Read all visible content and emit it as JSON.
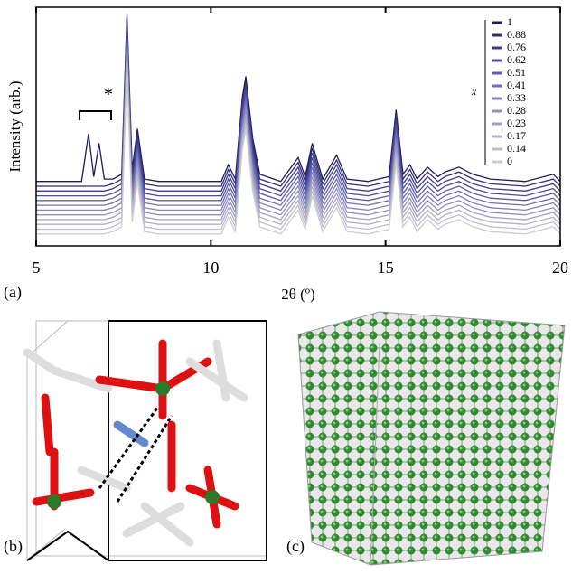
{
  "chart_data": {
    "type": "line",
    "xlabel": "2θ (º)",
    "ylabel": "Intensity (arb.)",
    "xlim": [
      5,
      20
    ],
    "xticks": [
      5,
      10,
      15,
      20
    ],
    "ylim": [
      0,
      100
    ],
    "legend_title": "x",
    "annotation": "*",
    "x": [
      5,
      6,
      6.3,
      6.5,
      6.65,
      6.8,
      6.95,
      7.2,
      7.45,
      7.6,
      7.75,
      7.9,
      8.1,
      8.5,
      9.5,
      10.3,
      10.5,
      10.7,
      10.9,
      11.0,
      11.2,
      11.4,
      12.0,
      12.5,
      12.7,
      12.9,
      13.2,
      13.6,
      13.9,
      14.5,
      15.1,
      15.3,
      15.5,
      15.7,
      15.9,
      16.2,
      16.5,
      16.7,
      17.1,
      17.5,
      18.0,
      19.0,
      19.8,
      20
    ],
    "series": [
      {
        "name": "1",
        "color": "#1c1c5a",
        "values": [
          27,
          27,
          27,
          47,
          29,
          43,
          28,
          28,
          30,
          97,
          32,
          49,
          28,
          27,
          27,
          27,
          34,
          28,
          62,
          71,
          45,
          30,
          27,
          37,
          29,
          43,
          28,
          38,
          28,
          27,
          29,
          57,
          30,
          34,
          28,
          33,
          29,
          31,
          33,
          30,
          28,
          27,
          30,
          27
        ]
      },
      {
        "name": "0.88",
        "color": "#2e2e78",
        "values": [
          25,
          25,
          25,
          25,
          25,
          25,
          25,
          26,
          28,
          95,
          30,
          47,
          26,
          25,
          25,
          25,
          32,
          26,
          60,
          69,
          43,
          28,
          25,
          35,
          27,
          41,
          26,
          36,
          26,
          25,
          27,
          55,
          28,
          32,
          26,
          31,
          27,
          29,
          31,
          28,
          26,
          25,
          28,
          25
        ]
      },
      {
        "name": "0.76",
        "color": "#3c3c8c",
        "values": [
          23,
          23,
          23,
          23,
          23,
          23,
          23,
          24,
          26,
          93,
          28,
          45,
          24,
          23,
          23,
          23,
          30,
          24,
          58,
          67,
          41,
          26,
          23,
          33,
          25,
          39,
          24,
          34,
          24,
          23,
          25,
          53,
          26,
          30,
          24,
          29,
          25,
          27,
          29,
          26,
          24,
          23,
          26,
          23
        ]
      },
      {
        "name": "0.62",
        "color": "#4b4b9c",
        "values": [
          21,
          21,
          21,
          21,
          21,
          21,
          21,
          22,
          24,
          91,
          26,
          43,
          22,
          21,
          21,
          21,
          28,
          22,
          56,
          65,
          39,
          24,
          21,
          31,
          23,
          37,
          22,
          32,
          22,
          21,
          23,
          51,
          24,
          28,
          22,
          27,
          23,
          25,
          27,
          24,
          22,
          21,
          24,
          21
        ]
      },
      {
        "name": "0.51",
        "color": "#5c5ca8",
        "values": [
          19,
          19,
          19,
          19,
          19,
          19,
          19,
          20,
          22,
          89,
          24,
          41,
          20,
          19,
          19,
          19,
          26,
          20,
          54,
          63,
          37,
          22,
          19,
          29,
          21,
          35,
          20,
          30,
          20,
          19,
          21,
          49,
          22,
          26,
          20,
          25,
          21,
          23,
          25,
          22,
          20,
          19,
          22,
          19
        ]
      },
      {
        "name": "0.41",
        "color": "#6e6eb2",
        "values": [
          17,
          17,
          17,
          17,
          17,
          17,
          17,
          18,
          20,
          87,
          22,
          39,
          18,
          17,
          17,
          17,
          24,
          18,
          52,
          61,
          35,
          20,
          17,
          27,
          19,
          33,
          18,
          28,
          18,
          17,
          19,
          47,
          20,
          24,
          18,
          23,
          19,
          21,
          23,
          20,
          18,
          17,
          20,
          17
        ]
      },
      {
        "name": "0.33",
        "color": "#8080ba",
        "values": [
          15,
          15,
          15,
          15,
          15,
          15,
          15,
          16,
          18,
          85,
          20,
          37,
          16,
          15,
          15,
          15,
          22,
          16,
          50,
          59,
          33,
          18,
          15,
          25,
          17,
          31,
          16,
          26,
          16,
          15,
          17,
          45,
          18,
          22,
          16,
          21,
          17,
          19,
          21,
          18,
          16,
          15,
          18,
          15
        ]
      },
      {
        "name": "0.28",
        "color": "#9090c0",
        "values": [
          13,
          13,
          13,
          13,
          13,
          13,
          13,
          14,
          16,
          83,
          18,
          35,
          14,
          13,
          13,
          13,
          20,
          14,
          48,
          57,
          31,
          16,
          13,
          23,
          15,
          29,
          14,
          24,
          14,
          13,
          15,
          43,
          16,
          20,
          14,
          19,
          15,
          17,
          19,
          16,
          14,
          13,
          16,
          13
        ]
      },
      {
        "name": "0.23",
        "color": "#a0a0c4",
        "values": [
          11,
          11,
          11,
          11,
          11,
          11,
          11,
          12,
          14,
          81,
          16,
          33,
          12,
          11,
          11,
          11,
          18,
          12,
          46,
          55,
          29,
          14,
          11,
          21,
          13,
          27,
          12,
          22,
          12,
          11,
          13,
          41,
          14,
          18,
          12,
          17,
          13,
          15,
          17,
          14,
          12,
          11,
          14,
          11
        ]
      },
      {
        "name": "0.17",
        "color": "#b0b0c8",
        "values": [
          9,
          9,
          9,
          9,
          9,
          9,
          9,
          10,
          12,
          79,
          14,
          31,
          10,
          9,
          9,
          9,
          16,
          10,
          44,
          53,
          27,
          12,
          9,
          19,
          11,
          25,
          10,
          20,
          10,
          9,
          11,
          39,
          12,
          16,
          10,
          15,
          11,
          13,
          15,
          12,
          10,
          9,
          12,
          9
        ]
      },
      {
        "name": "0.14",
        "color": "#bdbdcc",
        "values": [
          7,
          7,
          7,
          7,
          7,
          7,
          7,
          8,
          10,
          77,
          12,
          29,
          8,
          7,
          7,
          7,
          14,
          8,
          42,
          51,
          25,
          10,
          7,
          17,
          9,
          23,
          8,
          18,
          8,
          7,
          9,
          37,
          10,
          14,
          8,
          13,
          9,
          11,
          13,
          10,
          8,
          7,
          10,
          7
        ]
      },
      {
        "name": "0",
        "color": "#cccccc",
        "values": [
          5,
          5,
          5,
          5,
          5,
          5,
          5,
          6,
          8,
          75,
          10,
          27,
          6,
          5,
          5,
          5,
          12,
          6,
          40,
          49,
          23,
          8,
          5,
          15,
          7,
          21,
          6,
          16,
          6,
          5,
          7,
          35,
          8,
          12,
          6,
          11,
          7,
          9,
          11,
          8,
          6,
          5,
          8,
          5
        ]
      }
    ]
  },
  "panel_labels": [
    "(a)",
    "(b)",
    "(c)"
  ]
}
